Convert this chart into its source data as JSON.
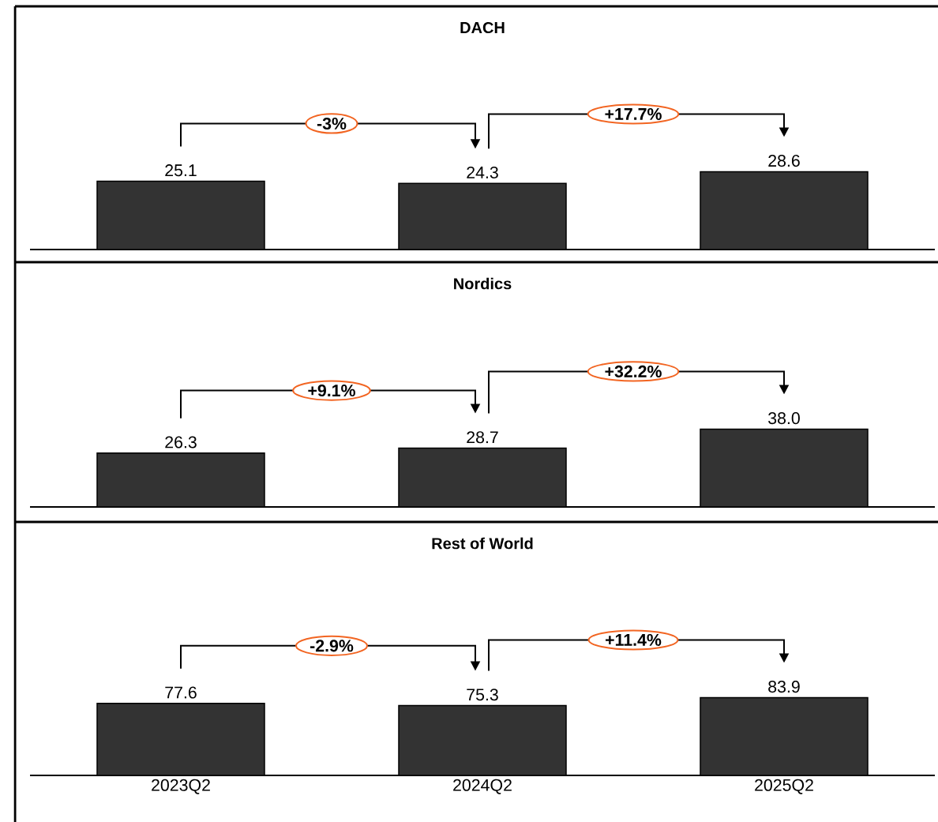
{
  "chart_data": [
    {
      "type": "bar",
      "title": "DACH",
      "categories": [
        null,
        null,
        null
      ],
      "values": [
        25.1,
        24.3,
        28.6
      ],
      "color": "#333333",
      "value_labels": [
        "25.1",
        "24.3",
        "28.6"
      ],
      "annotations": [
        "-3%",
        "+17.7%"
      ]
    },
    {
      "type": "bar",
      "title": "Nordics",
      "categories": [
        null,
        null,
        null
      ],
      "values": [
        26.3,
        28.7,
        38.0
      ],
      "color": "#333333",
      "value_labels": [
        "26.3",
        "28.7",
        "38.0"
      ],
      "annotations": [
        "+9.1%",
        "+32.2%"
      ]
    },
    {
      "type": "bar",
      "title": "Rest of World",
      "categories": [
        "2023Q2",
        "2024Q2",
        "2025Q2"
      ],
      "values": [
        77.6,
        75.3,
        83.9
      ],
      "color": "#333333",
      "value_labels": [
        "77.6",
        "75.3",
        "83.9"
      ],
      "tick_labels": "x",
      "annotations": [
        "-2.9%",
        "+11.4%"
      ]
    }
  ]
}
